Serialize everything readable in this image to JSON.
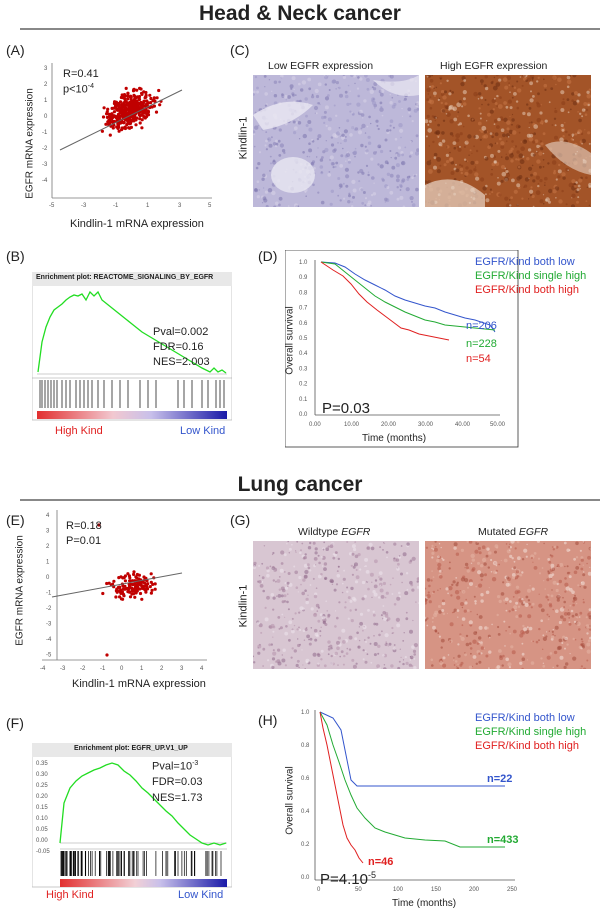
{
  "sections": {
    "head_neck": "Head & Neck cancer",
    "lung": "Lung cancer"
  },
  "panels": {
    "A": {
      "label": "(A)",
      "r": "R=0.41",
      "p_base": "p<10",
      "p_exp": "-4",
      "xlabel": "Kindlin-1 mRNA expression",
      "ylabel": "EGFR mRNA expression",
      "xticks": [
        "-5",
        "-3",
        "-1",
        "1",
        "3",
        "5"
      ],
      "yticks": [
        "3",
        "2",
        "1",
        "0",
        "-1",
        "-2",
        "-3",
        "-4"
      ]
    },
    "B": {
      "label": "(B)",
      "title": "Enrichment plot: REACTOME_SIGNALING_BY_EGFR",
      "pval": "Pval=0.002",
      "fdr": "FDR=0.16",
      "nes": "NES=2.003",
      "high": "High Kind",
      "low": "Low Kind"
    },
    "C": {
      "label": "(C)",
      "left_title": "Low EGFR expression",
      "right_title": "High EGFR expression",
      "row_label": "Kindlin-1"
    },
    "D": {
      "label": "(D)",
      "ylabel": "Overall survival",
      "xlabel": "Time (months)",
      "pval": "P=0.03",
      "legend": [
        "EGFR/Kind both low",
        "EGFR/Kind single high",
        "EGFR/Kind both high"
      ],
      "n_labels": [
        "n=206",
        "n=228",
        "n=54"
      ],
      "xticks": [
        "0.00",
        "10.00",
        "20.00",
        "30.00",
        "40.00",
        "50.00"
      ],
      "yticks": [
        "1.0",
        "0.9",
        "0.8",
        "0.7",
        "0.6",
        "0.5",
        "0.4",
        "0.3",
        "0.2",
        "0.1",
        "0.0"
      ]
    },
    "E": {
      "label": "(E)",
      "r": "R=0.18",
      "p": "P=0.01",
      "xlabel": "Kindlin-1 mRNA expression",
      "ylabel": "EGFR mRNA expression",
      "xticks": [
        "-4",
        "-3",
        "-2",
        "-1",
        "0",
        "1",
        "2",
        "3",
        "4"
      ],
      "yticks": [
        "4",
        "3",
        "2",
        "1",
        "0",
        "-1",
        "-2",
        "-3",
        "-4",
        "-5"
      ]
    },
    "F": {
      "label": "(F)",
      "title": "Enrichment plot: EGFR_UP.V1_UP",
      "pval_base": "Pval=10",
      "pval_exp": "-3",
      "fdr": "FDR=0.03",
      "nes": "NES=1.73",
      "high": "High Kind",
      "low": "Low Kind",
      "yticks": [
        "0.35",
        "0.30",
        "0.25",
        "0.20",
        "0.15",
        "0.10",
        "0.05",
        "0.00",
        "-0.05"
      ]
    },
    "G": {
      "label": "(G)",
      "left_title_a": "Wildtype ",
      "left_title_b": "EGFR",
      "right_title_a": "Mutated ",
      "right_title_b": "EGFR",
      "row_label": "Kindlin-1"
    },
    "H": {
      "label": "(H)",
      "ylabel": "Overall survival",
      "xlabel": "Time (months)",
      "pval_base": "P=4.10",
      "pval_exp": "-5",
      "legend": [
        "EGFR/Kind both low",
        "EGFR/Kind single high",
        "EGFR/Kind both high"
      ],
      "n_labels": [
        "n=22",
        "n=433",
        "n=46"
      ],
      "xticks": [
        "0",
        "50",
        "100",
        "150",
        "200",
        "250"
      ],
      "yticks": [
        "1.0",
        "0.8",
        "0.6",
        "0.4",
        "0.2",
        "0.0"
      ]
    }
  },
  "colors": {
    "low": "#3355cc",
    "single": "#22aa33",
    "high": "#e02020",
    "gsea_line": "#22dd22",
    "scatter": "#c00000",
    "ihc_low": "#b9b4d6",
    "ihc_high": "#9a4a22"
  }
}
